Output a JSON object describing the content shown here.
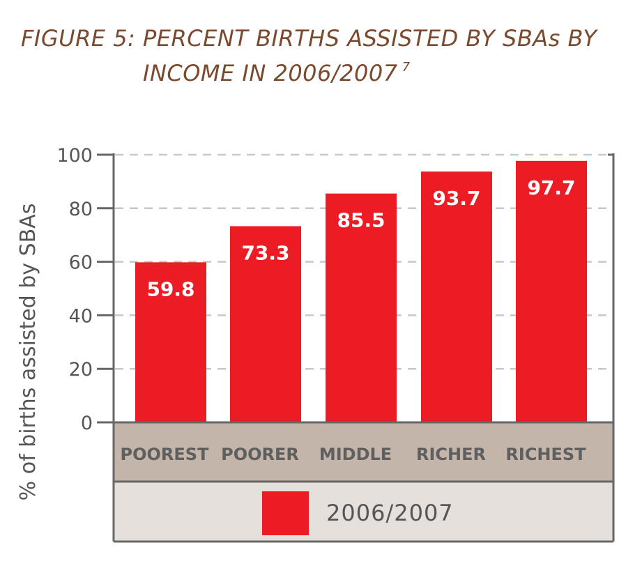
{
  "title": {
    "line1": "FIGURE 5: PERCENT BIRTHS ASSISTED BY SBAs BY",
    "line2": "INCOME IN 2006/2007",
    "footnote": "7"
  },
  "colors": {
    "title": "#7b4a2e",
    "bar": "#ec1c24",
    "category_band": "#c4b5ab",
    "legend_band": "#e6e0dc",
    "axis": "#666666",
    "grid": "#c8c8c8"
  },
  "chart_data": {
    "type": "bar",
    "title": "FIGURE 5: PERCENT BIRTHS ASSISTED BY SBAs BY INCOME IN 2006/2007",
    "categories": [
      "POOREST",
      "POORER",
      "MIDDLE",
      "RICHER",
      "RICHEST"
    ],
    "series": [
      {
        "name": "2006/2007",
        "values": [
          59.8,
          73.3,
          85.5,
          93.7,
          97.7
        ]
      }
    ],
    "data_labels": [
      "59.8",
      "73.3",
      "85.5",
      "93.7",
      "97.7"
    ],
    "xlabel": "",
    "ylabel": "% of births assisted by SBAs",
    "ylim": [
      0,
      100
    ],
    "yticks": [
      "0",
      "20",
      "40",
      "60",
      "80",
      "100"
    ],
    "grid": "horizontal dashed",
    "legend_position": "bottom"
  }
}
